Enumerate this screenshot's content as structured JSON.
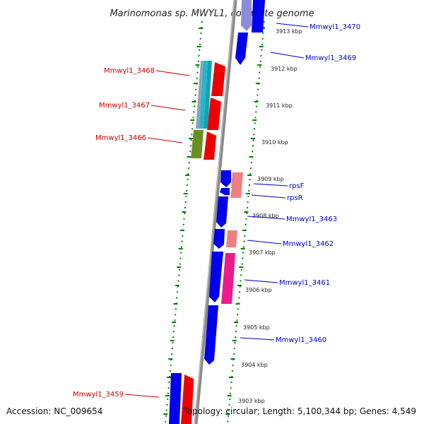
{
  "title": "Marinomonas sp. MWYL1, complete genome",
  "footer": {
    "accession": "Accession: NC_009654",
    "summary": "Topology: circular; Length: 5,100,344 bp; Genes: 4,549"
  },
  "colors": {
    "forward_label": "#0000cc",
    "reverse_label": "#cc0000",
    "cds_blue": "#0000ee",
    "cds_red": "#ee0000",
    "cds_salmon": "#ee8080",
    "cds_magenta": "#ee1a8c",
    "cds_olive": "#6b8e23",
    "cds_cyan": "#20b8cc",
    "cds_lavender": "#8c8cd8",
    "cds_grey_blue": "#8ea4c0",
    "backbone": "#888888",
    "ticks": "#008000"
  },
  "scale_labels": [
    "3913 kbp",
    "3912 kbp",
    "3911 kbp",
    "3910 kbp",
    "3909 kbp",
    "3908 kbp",
    "3907 kbp",
    "3906 kbp",
    "3905 kbp",
    "3904 kbp",
    "3903 kbp"
  ],
  "gene_labels": {
    "forward": [
      "Mmwyl1_3470",
      "Mmwyl1_3469",
      "rpsF",
      "rpsR",
      "Mmwyl1_3463",
      "Mmwyl1_3462",
      "Mmwyl1_3461",
      "Mmwyl1_3460"
    ],
    "reverse": [
      "Mmwyl1_3468",
      "Mmwyl1_3467",
      "Mmwyl1_3466",
      "Mmwyl1_3459"
    ]
  }
}
